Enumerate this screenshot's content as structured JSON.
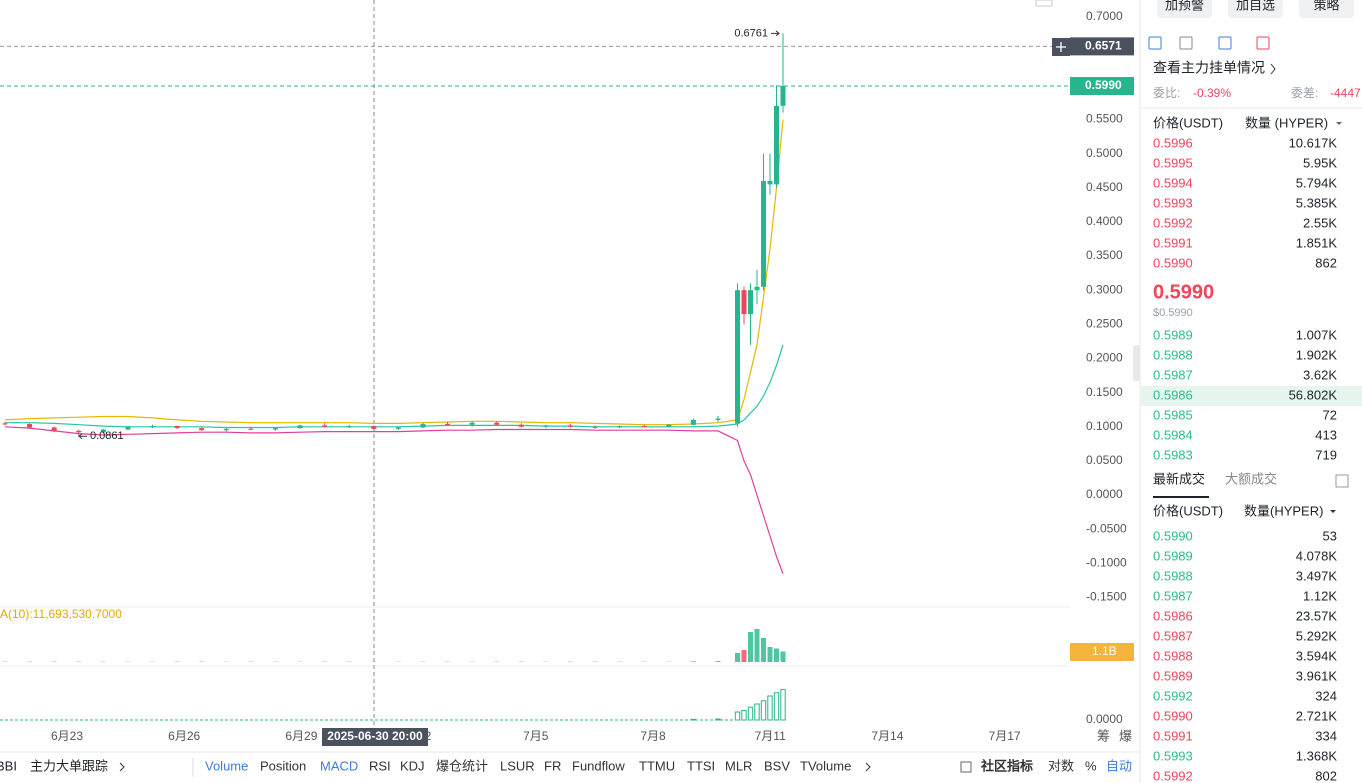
{
  "toolbar_buttons": [
    "加预警",
    "加自选",
    "策略"
  ],
  "chart_data": {
    "type": "candlestick",
    "up_color": "#26b58c",
    "down_color": "#f0455a",
    "ylim": [
      -0.161,
      0.725
    ],
    "yticks": [
      {
        "value": 0.7,
        "label": "0.7000"
      },
      {
        "value": 0.65,
        "label": "0.6500"
      },
      {
        "value": 0.6,
        "label": "0.6000"
      },
      {
        "value": 0.55,
        "label": "0.5500"
      },
      {
        "value": 0.5,
        "label": "0.5000"
      },
      {
        "value": 0.45,
        "label": "0.4500"
      },
      {
        "value": 0.4,
        "label": "0.4000"
      },
      {
        "value": 0.35,
        "label": "0.3500"
      },
      {
        "value": 0.3,
        "label": "0.3000"
      },
      {
        "value": 0.25,
        "label": "0.2500"
      },
      {
        "value": 0.2,
        "label": "0.2000"
      },
      {
        "value": 0.15,
        "label": "0.1500"
      },
      {
        "value": 0.1,
        "label": "0.1000"
      },
      {
        "value": 0.05,
        "label": "0.0500"
      },
      {
        "value": 0,
        "label": "0.0000"
      },
      {
        "value": -0.05,
        "label": "-0.0500"
      },
      {
        "value": -0.1,
        "label": "-0.1000"
      },
      {
        "value": -0.15,
        "label": "-0.1500"
      }
    ],
    "candles": [
      [
        0.105,
        0.107,
        0.102,
        0.104
      ],
      [
        0.104,
        0.105,
        0.098,
        0.099
      ],
      [
        0.099,
        0.1,
        0.092,
        0.094
      ],
      [
        0.094,
        0.096,
        0.0861,
        0.092
      ],
      [
        0.092,
        0.097,
        0.09,
        0.096
      ],
      [
        0.096,
        0.101,
        0.095,
        0.1
      ],
      [
        0.1,
        0.103,
        0.098,
        0.101
      ],
      [
        0.101,
        0.102,
        0.097,
        0.098
      ],
      [
        0.098,
        0.1,
        0.094,
        0.095
      ],
      [
        0.095,
        0.098,
        0.093,
        0.097
      ],
      [
        0.097,
        0.1,
        0.095,
        0.096
      ],
      [
        0.096,
        0.099,
        0.094,
        0.098
      ],
      [
        0.098,
        0.103,
        0.097,
        0.102
      ],
      [
        0.102,
        0.105,
        0.099,
        0.1
      ],
      [
        0.1,
        0.103,
        0.098,
        0.101
      ],
      [
        0.101,
        0.102,
        0.096,
        0.097
      ],
      [
        0.097,
        0.1,
        0.095,
        0.099
      ],
      [
        0.099,
        0.106,
        0.098,
        0.104
      ],
      [
        0.104,
        0.107,
        0.101,
        0.103
      ],
      [
        0.103,
        0.108,
        0.1,
        0.106
      ],
      [
        0.106,
        0.108,
        0.102,
        0.103
      ],
      [
        0.103,
        0.105,
        0.099,
        0.1
      ],
      [
        0.1,
        0.103,
        0.098,
        0.102
      ],
      [
        0.102,
        0.104,
        0.099,
        0.1
      ],
      [
        0.1,
        0.102,
        0.097,
        0.099
      ],
      [
        0.099,
        0.102,
        0.098,
        0.101
      ],
      [
        0.101,
        0.103,
        0.099,
        0.1
      ],
      [
        0.1,
        0.104,
        0.099,
        0.103
      ],
      [
        0.103,
        0.112,
        0.102,
        0.11
      ],
      [
        0.11,
        0.116,
        0.107,
        0.112
      ],
      [
        0.105,
        0.31,
        0.1,
        0.3
      ],
      [
        0.3,
        0.305,
        0.25,
        0.265
      ],
      [
        0.265,
        0.31,
        0.22,
        0.3
      ],
      [
        0.3,
        0.33,
        0.28,
        0.305
      ],
      [
        0.305,
        0.5,
        0.3,
        0.46
      ],
      [
        0.455,
        0.5,
        0.44,
        0.46
      ],
      [
        0.455,
        0.6,
        0.45,
        0.57
      ],
      [
        0.57,
        0.6761,
        0.56,
        0.599
      ]
    ],
    "moving_averages": [
      {
        "color": "#e6b800",
        "values": [
          0.11,
          0.112,
          0.113,
          0.114,
          0.115,
          0.115,
          0.113,
          0.11,
          0.108,
          0.107,
          0.106,
          0.106,
          0.106,
          0.106,
          0.106,
          0.105,
          0.105,
          0.106,
          0.107,
          0.108,
          0.108,
          0.107,
          0.106,
          0.106,
          0.105,
          0.104,
          0.103,
          0.103,
          0.104,
          0.106,
          0.11,
          0.14,
          0.18,
          0.22,
          0.29,
          0.36,
          0.45,
          0.55
        ]
      },
      {
        "color": "#26c6a6",
        "values": [
          0.106,
          0.106,
          0.105,
          0.103,
          0.101,
          0.1,
          0.1,
          0.1,
          0.1,
          0.099,
          0.099,
          0.099,
          0.1,
          0.1,
          0.1,
          0.1,
          0.1,
          0.101,
          0.102,
          0.102,
          0.102,
          0.102,
          0.101,
          0.101,
          0.1,
          0.1,
          0.1,
          0.1,
          0.1,
          0.101,
          0.104,
          0.11,
          0.12,
          0.13,
          0.145,
          0.165,
          0.19,
          0.22
        ]
      },
      {
        "color": "#e0409c",
        "values": [
          0.1,
          0.098,
          0.094,
          0.09,
          0.088,
          0.089,
          0.09,
          0.091,
          0.092,
          0.092,
          0.091,
          0.091,
          0.092,
          0.093,
          0.093,
          0.093,
          0.093,
          0.094,
          0.095,
          0.095,
          0.096,
          0.096,
          0.096,
          0.096,
          0.095,
          0.095,
          0.095,
          0.095,
          0.094,
          0.094,
          0.08,
          0.05,
          0.03,
          0,
          -0.03,
          -0.06,
          -0.09,
          -0.115
        ]
      }
    ],
    "x_labels": [
      "6月23",
      "6月26",
      "6月29",
      "7月2",
      "7月5",
      "7月8",
      "7月11",
      "7月14",
      "7月17"
    ],
    "crosshair_time": "2025-06-30 20:00",
    "crosshair_price": {
      "value": 0.6571,
      "label": "0.6571"
    },
    "last_price": {
      "value": 0.599,
      "label": "0.5990"
    },
    "high_marker": {
      "value": 0.6761,
      "label": "0.6761"
    },
    "low_marker": {
      "value": 0.0861,
      "label": "0.0861"
    },
    "volume_label": "A(10):11,693,530.7000",
    "volume_badge": "1.1B",
    "volume": [
      0.01,
      0.01,
      0.01,
      0.01,
      0.01,
      0.01,
      0.01,
      0.01,
      0.01,
      0.01,
      0.01,
      0.01,
      0.01,
      0.01,
      0.01,
      0.01,
      0.01,
      0.01,
      0.01,
      0.01,
      0.01,
      0.01,
      0.01,
      0.01,
      0.01,
      0.01,
      0.01,
      0.01,
      0.02,
      0.03,
      0.3,
      0.4,
      1.0,
      1.1,
      0.8,
      0.5,
      0.45,
      0.35
    ],
    "indicator": [
      0,
      0,
      0,
      0,
      0,
      0,
      0,
      0,
      0,
      0,
      0,
      0,
      0,
      0,
      0,
      0,
      0,
      0,
      0,
      0,
      0,
      0,
      0,
      0,
      0,
      0,
      0,
      0,
      0.02,
      0.03,
      0.25,
      0.3,
      0.4,
      0.5,
      0.6,
      0.75,
      0.85,
      0.95
    ],
    "indicator_yticks": [
      {
        "value": 0,
        "label": "0.0000"
      }
    ],
    "axis_extra": [
      "筹",
      "爆"
    ]
  },
  "order_book": {
    "link": "查看主力挂单情况",
    "ratio_label": "委比:",
    "ratio": "-0.39%",
    "diff_label": "委差:",
    "diff": "-4447",
    "price_header": "价格(USDT)",
    "qty_header": "数量 (HYPER)",
    "asks": [
      [
        "0.5996",
        "10.617K"
      ],
      [
        "0.5995",
        "5.95K"
      ],
      [
        "0.5994",
        "5.794K"
      ],
      [
        "0.5993",
        "5.385K"
      ],
      [
        "0.5992",
        "2.55K"
      ],
      [
        "0.5991",
        "1.851K"
      ],
      [
        "0.5990",
        "862"
      ]
    ],
    "mid_price": "0.5990",
    "mid_usd": "$0.5990",
    "bids": [
      [
        "0.5989",
        "1.007K"
      ],
      [
        "0.5988",
        "1.902K"
      ],
      [
        "0.5987",
        "3.62K"
      ],
      [
        "0.5986",
        "56.802K"
      ],
      [
        "0.5985",
        "72"
      ],
      [
        "0.5984",
        "413"
      ],
      [
        "0.5983",
        "719"
      ]
    ],
    "highlight_row": 3
  },
  "trades": {
    "tabs": [
      "最新成交",
      "大额成交"
    ],
    "price_header": "价格(USDT)",
    "qty_header": "数量(HYPER)",
    "rows": [
      {
        "price": "0.5990",
        "qty": "53",
        "color": "#2ebd85"
      },
      {
        "price": "0.5989",
        "qty": "4.078K",
        "color": "#2ebd85"
      },
      {
        "price": "0.5988",
        "qty": "3.497K",
        "color": "#2ebd85"
      },
      {
        "price": "0.5987",
        "qty": "1.12K",
        "color": "#2ebd85"
      },
      {
        "price": "0.5986",
        "qty": "23.57K",
        "color": "#f0455a"
      },
      {
        "price": "0.5987",
        "qty": "5.292K",
        "color": "#f0455a"
      },
      {
        "price": "0.5988",
        "qty": "3.594K",
        "color": "#f0455a"
      },
      {
        "price": "0.5989",
        "qty": "3.961K",
        "color": "#f0455a"
      },
      {
        "price": "0.5992",
        "qty": "324",
        "color": "#2ebd85"
      },
      {
        "price": "0.5990",
        "qty": "2.721K",
        "color": "#f0455a"
      },
      {
        "price": "0.5991",
        "qty": "334",
        "color": "#f0455a"
      },
      {
        "price": "0.5993",
        "qty": "1.368K",
        "color": "#2ebd85"
      },
      {
        "price": "0.5992",
        "qty": "802",
        "color": "#f0455a"
      }
    ]
  },
  "bottom_bar": {
    "left": [
      "BBI",
      "主力大单跟踪"
    ],
    "indicators": [
      {
        "name": "Volume",
        "active": true
      },
      {
        "name": "Position",
        "active": false
      },
      {
        "name": "MACD",
        "active": true
      },
      {
        "name": "RSI",
        "active": false
      },
      {
        "name": "KDJ",
        "active": false
      },
      {
        "name": "爆仓统计",
        "active": false
      },
      {
        "name": "LSUR",
        "active": false
      },
      {
        "name": "FR",
        "active": false
      },
      {
        "name": "Fundflow",
        "active": false
      },
      {
        "name": "TTMU",
        "active": false
      },
      {
        "name": "TTSI",
        "active": false
      },
      {
        "name": "MLR",
        "active": false
      },
      {
        "name": "BSV",
        "active": false
      },
      {
        "name": "TVolume",
        "active": false
      }
    ],
    "right": [
      {
        "name": "社区指标",
        "active": false
      },
      {
        "name": "对数",
        "active": false
      },
      {
        "name": "%",
        "active": false
      },
      {
        "name": "自动",
        "active": true
      }
    ]
  }
}
